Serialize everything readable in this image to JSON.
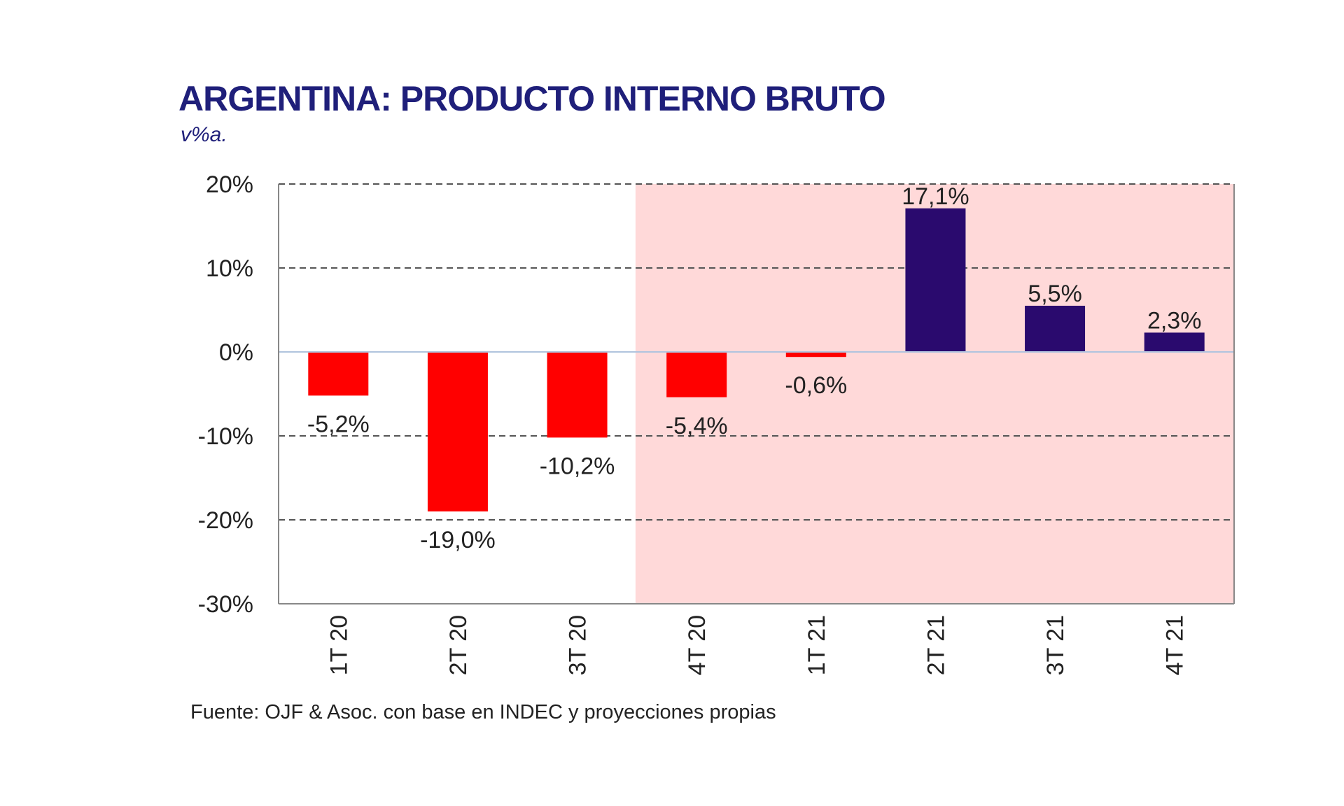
{
  "title": "ARGENTINA: PRODUCTO INTERNO BRUTO",
  "subtitle": "v%a.",
  "source": "Fuente: OJF & Asoc. con base en INDEC y proyecciones propias",
  "chart_data": {
    "type": "bar",
    "title": "ARGENTINA: PRODUCTO INTERNO BRUTO",
    "subtitle": "v%a.",
    "categories": [
      "1T 20",
      "2T 20",
      "3T 20",
      "4T 20",
      "1T 21",
      "2T 21",
      "3T 21",
      "4T 21"
    ],
    "values": [
      -5.2,
      -19.0,
      -10.2,
      -5.4,
      -0.6,
      17.1,
      5.5,
      2.3
    ],
    "data_labels": [
      "-5,2%",
      "-19,0%",
      "-10,2%",
      "-5,4%",
      "-0,6%",
      "17,1%",
      "5,5%",
      "2,3%"
    ],
    "ylim": [
      -30,
      20
    ],
    "yticks": [
      20,
      10,
      0,
      -10,
      -20,
      -30
    ],
    "ytick_labels": [
      "20%",
      "10%",
      "0%",
      "-10%",
      "-20%",
      "-30%"
    ],
    "xlabel": "",
    "ylabel": "",
    "grid": "horizontal dashed",
    "projection_shading_from_category": "4T 20",
    "colors": {
      "negative": "#ff0000",
      "positive": "#2a0a6e",
      "projection_background": "#ffd9d9",
      "title": "#1f1f7a",
      "zero_line": "#b0c4de"
    }
  }
}
